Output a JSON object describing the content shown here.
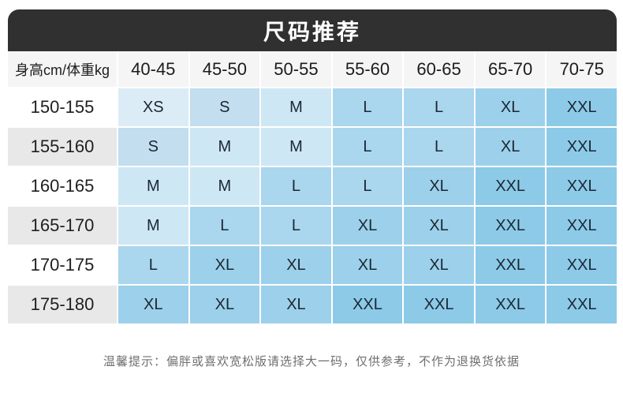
{
  "chart_data": {
    "type": "table",
    "title": "尺码推荐",
    "corner_label": "身高cm/体重kg",
    "columns": [
      "40-45",
      "45-50",
      "50-55",
      "55-60",
      "60-65",
      "65-70",
      "70-75"
    ],
    "row_labels": [
      "150-155",
      "155-160",
      "160-165",
      "165-170",
      "170-175",
      "175-180"
    ],
    "rows": [
      [
        "XS",
        "S",
        "M",
        "L",
        "L",
        "XL",
        "XXL"
      ],
      [
        "S",
        "M",
        "M",
        "L",
        "L",
        "XL",
        "XXL"
      ],
      [
        "M",
        "M",
        "L",
        "L",
        "XL",
        "XXL",
        "XXL"
      ],
      [
        "M",
        "L",
        "L",
        "XL",
        "XL",
        "XXL",
        "XXL"
      ],
      [
        "L",
        "XL",
        "XL",
        "XL",
        "XL",
        "XXL",
        "XXL"
      ],
      [
        "XL",
        "XL",
        "XL",
        "XXL",
        "XXL",
        "XXL",
        "XXL"
      ]
    ],
    "note": "温馨提示：偏胖或喜欢宽松版请选择大一码，仅供参考，不作为退换货依据"
  },
  "size_colors": {
    "XS": "#dcecf6",
    "S": "#c3deee",
    "M": "#cde7f5",
    "L": "#aad6ee",
    "XL": "#9dd0ea",
    "XXL": "#8ccae8"
  },
  "colors": {
    "title_bar_bg": "#303030",
    "title_text": "#ffffff",
    "header_cell_bg": "#f5f5f5",
    "row_label_alt_bg": "#e8e8e8",
    "cell_text": "#1b2733",
    "note_text": "#6f6f6f"
  }
}
